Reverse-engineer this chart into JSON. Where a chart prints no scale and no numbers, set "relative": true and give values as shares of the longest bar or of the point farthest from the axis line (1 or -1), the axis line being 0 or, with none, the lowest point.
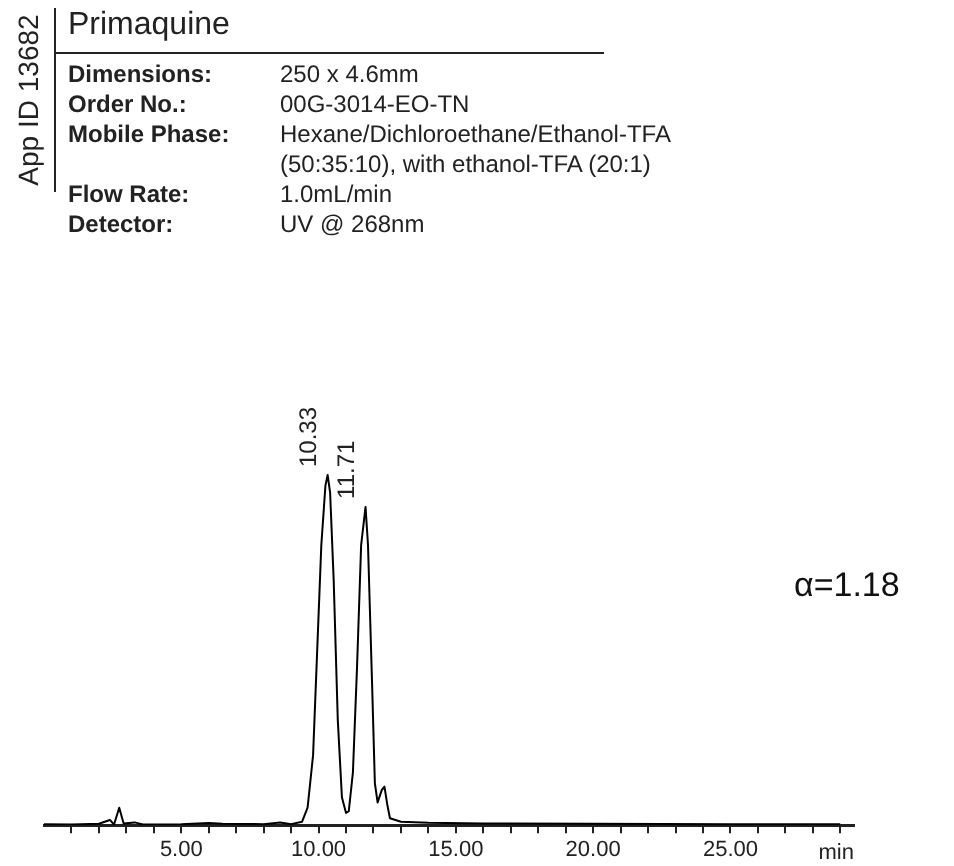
{
  "chart_data": {
    "type": "line",
    "title": "Primaquine",
    "relative": true,
    "color": "#000000",
    "marker": "none",
    "legend": false,
    "grid": false,
    "xlabel": "min",
    "xlim": [
      0,
      29.5
    ],
    "xticks": [
      {
        "value": 1,
        "label": null
      },
      {
        "value": 2,
        "label": null
      },
      {
        "value": 3,
        "label": null
      },
      {
        "value": 4,
        "label": null
      },
      {
        "value": 5,
        "label": "5.00"
      },
      {
        "value": 6,
        "label": null
      },
      {
        "value": 7,
        "label": null
      },
      {
        "value": 8,
        "label": null
      },
      {
        "value": 9,
        "label": null
      },
      {
        "value": 10,
        "label": "10.00"
      },
      {
        "value": 11,
        "label": null
      },
      {
        "value": 12,
        "label": null
      },
      {
        "value": 13,
        "label": null
      },
      {
        "value": 14,
        "label": null
      },
      {
        "value": 15,
        "label": "15.00"
      },
      {
        "value": 16,
        "label": null
      },
      {
        "value": 17,
        "label": null
      },
      {
        "value": 18,
        "label": null
      },
      {
        "value": 19,
        "label": null
      },
      {
        "value": 20,
        "label": "20.00"
      },
      {
        "value": 21,
        "label": null
      },
      {
        "value": 22,
        "label": null
      },
      {
        "value": 23,
        "label": null
      },
      {
        "value": 24,
        "label": null
      },
      {
        "value": 25,
        "label": "25.00"
      },
      {
        "value": 26,
        "label": null
      },
      {
        "value": 27,
        "label": null
      },
      {
        "value": 28,
        "label": null
      },
      {
        "value": 29,
        "label": null
      }
    ],
    "x": [
      0,
      1,
      2,
      2.4,
      2.55,
      2.74,
      2.9,
      3.3,
      3.6,
      5,
      6,
      6.5,
      8,
      8.6,
      9,
      9.4,
      9.6,
      9.8,
      9.95,
      10.1,
      10.25,
      10.33,
      10.42,
      10.55,
      10.7,
      10.85,
      11,
      11.1,
      11.25,
      11.4,
      11.55,
      11.71,
      11.8,
      11.95,
      12.05,
      12.15,
      12.3,
      12.4,
      12.5,
      12.6,
      13,
      14,
      16,
      20,
      25,
      29
    ],
    "values": [
      0.003,
      0.002,
      0.004,
      0.015,
      0.002,
      0.05,
      0.005,
      0.008,
      0.002,
      0.003,
      0.006,
      0.004,
      0.003,
      0.008,
      0.003,
      0.01,
      0.05,
      0.2,
      0.5,
      0.8,
      0.97,
      1,
      0.95,
      0.7,
      0.3,
      0.08,
      0.035,
      0.04,
      0.15,
      0.45,
      0.8,
      0.909,
      0.8,
      0.4,
      0.12,
      0.065,
      0.1,
      0.11,
      0.06,
      0.02,
      0.01,
      0.007,
      0.005,
      0.004,
      0.003,
      0.003
    ],
    "annotations": [
      "App ID 13682",
      "Dimensions:",
      "250 x 4.6mm",
      "Order No.:",
      "00G-3014-EO-TN",
      "Mobile Phase:",
      "Hexane/Dichloroethane/Ethanol-TFA (50:35:10), with ethanol-TFA (20:1)",
      "Flow Rate:",
      "1.0mL/min",
      "Detector:",
      "UV @ 268nm",
      {
        "text": "10.33",
        "x": 10.33,
        "y": 1
      },
      {
        "text": "11.71",
        "x": 11.71,
        "y": 0.909
      },
      "α=1.18"
    ]
  }
}
